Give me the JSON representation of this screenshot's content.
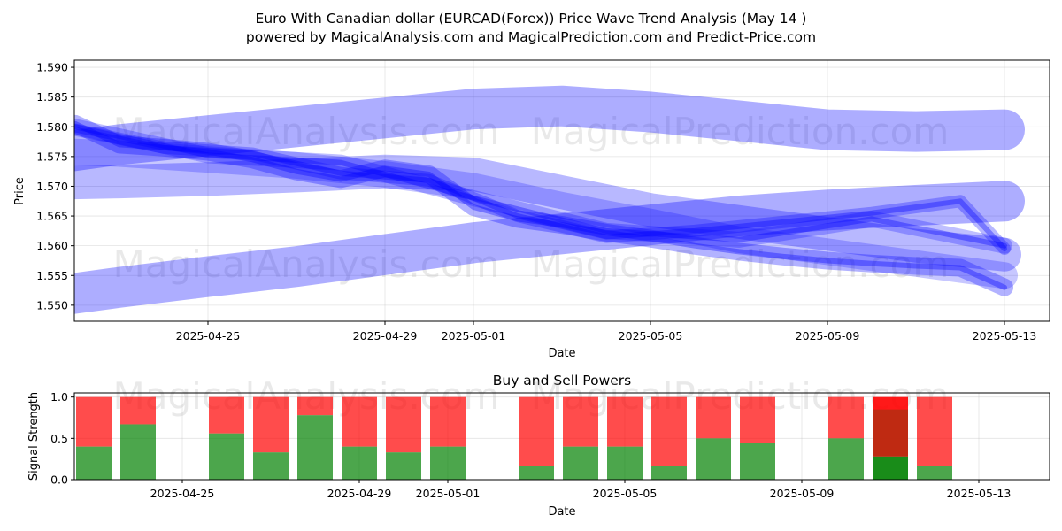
{
  "colors": {
    "wave": "#0000ff",
    "buy": "#008000",
    "sell": "#ff0000",
    "grid": "#b0b0b0"
  },
  "watermarks": [
    "MagicalAnalysis.com",
    "MagicalPrediction.com"
  ],
  "chart_data": [
    {
      "type": "line",
      "title": "Euro With Canadian dollar (EURCAD(Forex)) Price Wave Trend Analysis (May 14 )",
      "subtitle": "powered by MagicalAnalysis.com and MagicalPrediction.com and Predict-Price.com",
      "xlabel": "Date",
      "ylabel": "Price",
      "xlim": [
        "2025-04-21",
        "2025-05-14"
      ],
      "ylim": [
        1.5473,
        1.5912
      ],
      "x_ticks": [
        "2025-04-25",
        "2025-04-29",
        "2025-05-01",
        "2025-05-05",
        "2025-05-09",
        "2025-05-13"
      ],
      "y_ticks": [
        "1.550",
        "1.555",
        "1.560",
        "1.565",
        "1.570",
        "1.575",
        "1.580",
        "1.585",
        "1.590"
      ],
      "grid": true,
      "series": [
        {
          "x": [
            "2025-04-22",
            "2025-04-23",
            "2025-04-24",
            "2025-04-25",
            "2025-04-26",
            "2025-04-27",
            "2025-04-28",
            "2025-04-29",
            "2025-04-30",
            "2025-05-01",
            "2025-05-02",
            "2025-05-03",
            "2025-05-04",
            "2025-05-05",
            "2025-05-06",
            "2025-05-07",
            "2025-05-08",
            "2025-05-09",
            "2025-05-10",
            "2025-05-11",
            "2025-05-12",
            "2025-05-13"
          ],
          "values": [
            1.5805,
            1.577,
            1.5765,
            1.5758,
            1.5745,
            1.5725,
            1.5712,
            1.573,
            1.572,
            1.5665,
            1.5645,
            1.5635,
            1.5622,
            1.5612,
            1.56,
            1.559,
            1.5582,
            1.5575,
            1.557,
            1.5566,
            1.5563,
            1.553
          ]
        },
        {
          "x": [
            "2025-04-22",
            "2025-04-24",
            "2025-04-26",
            "2025-04-28",
            "2025-04-30",
            "2025-05-02",
            "2025-05-04",
            "2025-05-06",
            "2025-05-08",
            "2025-05-10",
            "2025-05-12",
            "2025-05-13"
          ],
          "values": [
            1.5795,
            1.5765,
            1.5755,
            1.5722,
            1.571,
            1.565,
            1.5615,
            1.5625,
            1.564,
            1.5655,
            1.5675,
            1.5595
          ]
        },
        {
          "x": [
            "2025-04-22",
            "2025-04-25",
            "2025-04-28",
            "2025-05-01",
            "2025-05-04",
            "2025-05-07",
            "2025-05-10",
            "2025-05-13"
          ],
          "values": [
            1.58,
            1.5752,
            1.574,
            1.568,
            1.5625,
            1.561,
            1.5645,
            1.56
          ]
        },
        {
          "x": [
            "2025-04-21",
            "2025-04-23",
            "2025-04-25",
            "2025-04-27",
            "2025-04-29",
            "2025-05-01",
            "2025-05-03",
            "2025-05-05",
            "2025-05-07",
            "2025-05-09",
            "2025-05-11",
            "2025-05-13"
          ],
          "values": [
            1.575,
            1.577,
            1.5785,
            1.58,
            1.5815,
            1.583,
            1.5835,
            1.5825,
            1.581,
            1.5795,
            1.5792,
            1.5795
          ]
        },
        {
          "x": [
            "2025-04-21",
            "2025-04-23",
            "2025-04-25",
            "2025-04-27",
            "2025-04-29",
            "2025-05-01",
            "2025-05-03",
            "2025-05-05",
            "2025-05-07",
            "2025-05-09",
            "2025-05-11",
            "2025-05-13"
          ],
          "values": [
            1.5705,
            1.5708,
            1.5712,
            1.5718,
            1.5725,
            1.572,
            1.569,
            1.566,
            1.564,
            1.562,
            1.56,
            1.5585
          ]
        },
        {
          "x": [
            "2025-04-21",
            "2025-04-23",
            "2025-04-25",
            "2025-04-27",
            "2025-04-29",
            "2025-05-01",
            "2025-05-03",
            "2025-05-05",
            "2025-05-07",
            "2025-05-09",
            "2025-05-11",
            "2025-05-13"
          ],
          "values": [
            1.551,
            1.553,
            1.5548,
            1.5565,
            1.5585,
            1.5605,
            1.562,
            1.5635,
            1.565,
            1.566,
            1.5668,
            1.5675
          ]
        },
        {
          "x": [
            "2025-04-21",
            "2025-04-23",
            "2025-04-25",
            "2025-04-27",
            "2025-04-29",
            "2025-05-01",
            "2025-05-03",
            "2025-05-05",
            "2025-05-07",
            "2025-05-09",
            "2025-05-11",
            "2025-05-13"
          ],
          "values": [
            1.576,
            1.5755,
            1.5745,
            1.5735,
            1.572,
            1.57,
            1.5668,
            1.564,
            1.561,
            1.559,
            1.557,
            1.555
          ]
        }
      ]
    },
    {
      "type": "bar",
      "title": "Buy and Sell Powers",
      "xlabel": "Date",
      "ylabel": "Signal Strength",
      "ylim": [
        0,
        1.05
      ],
      "y_ticks": [
        "0.0",
        "0.5",
        "1.0"
      ],
      "x_ticks": [
        "2025-04-25",
        "2025-04-29",
        "2025-05-01",
        "2025-05-05",
        "2025-05-09",
        "2025-05-13"
      ],
      "grid": true,
      "categories": [
        "2025-04-23",
        "2025-04-24",
        "2025-04-26",
        "2025-04-27",
        "2025-04-28",
        "2025-04-29",
        "2025-04-30",
        "2025-05-01",
        "2025-05-03",
        "2025-05-04",
        "2025-05-05",
        "2025-05-06",
        "2025-05-07",
        "2025-05-08",
        "2025-05-10",
        "2025-05-11",
        "2025-05-12"
      ],
      "series": [
        {
          "name": "Buy",
          "values": [
            0.4,
            0.67,
            0.56,
            0.33,
            0.78,
            0.4,
            0.33,
            0.4,
            0.17,
            0.4,
            0.4,
            0.17,
            0.5,
            0.45,
            0.5,
            0.28,
            0.17
          ]
        },
        {
          "name": "Sell",
          "values": [
            0.6,
            0.33,
            0.44,
            0.67,
            0.22,
            0.6,
            0.67,
            0.6,
            0.83,
            0.6,
            0.6,
            0.83,
            0.5,
            0.55,
            0.5,
            0.72,
            0.83
          ]
        }
      ]
    }
  ]
}
